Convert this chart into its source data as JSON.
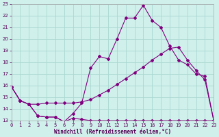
{
  "xlabel": "Windchill (Refroidissement éolien,°C)",
  "bg_color": "#cff0eb",
  "line_color": "#800080",
  "grid_color": "#aad8d0",
  "xlim": [
    0,
    23
  ],
  "ylim": [
    13,
    23
  ],
  "xticks": [
    0,
    1,
    2,
    3,
    4,
    5,
    6,
    7,
    8,
    9,
    10,
    11,
    12,
    13,
    14,
    15,
    16,
    17,
    18,
    19,
    20,
    21,
    22,
    23
  ],
  "yticks": [
    13,
    14,
    15,
    16,
    17,
    18,
    19,
    20,
    21,
    22,
    23
  ],
  "curve_wavy_x": [
    0,
    1,
    2,
    3,
    4,
    5,
    6,
    7,
    8,
    9,
    10,
    11,
    12,
    13,
    14,
    15,
    16,
    17,
    18,
    19,
    20,
    21,
    22,
    23
  ],
  "curve_wavy_y": [
    15.9,
    14.7,
    14.4,
    13.4,
    13.3,
    13.3,
    12.9,
    13.2,
    13.1,
    13.0,
    13.0,
    13.0,
    13.0,
    13.0,
    13.0,
    13.0,
    13.0,
    13.0,
    13.0,
    13.0,
    13.0,
    13.0,
    13.0,
    13.0
  ],
  "curve_mid_x": [
    0,
    1,
    2,
    3,
    4,
    5,
    6,
    7,
    8,
    9,
    10,
    11,
    12,
    13,
    14,
    15,
    16,
    17,
    18,
    19,
    20,
    21,
    22,
    23
  ],
  "curve_mid_y": [
    15.9,
    14.7,
    14.4,
    14.4,
    14.5,
    14.5,
    14.5,
    14.5,
    14.6,
    14.8,
    15.2,
    15.6,
    16.1,
    16.6,
    17.1,
    17.6,
    18.2,
    18.7,
    19.2,
    19.3,
    18.2,
    17.3,
    16.5,
    13.0
  ],
  "curve_top_x": [
    0,
    1,
    2,
    3,
    4,
    5,
    6,
    7,
    8,
    9,
    10,
    11,
    12,
    13,
    14,
    15,
    16,
    17,
    18,
    19,
    20,
    21,
    22,
    23
  ],
  "curve_top_y": [
    15.9,
    14.7,
    14.4,
    13.4,
    13.3,
    13.3,
    12.9,
    13.6,
    14.5,
    17.5,
    18.5,
    18.3,
    20.0,
    21.8,
    21.8,
    22.9,
    21.6,
    21.0,
    19.4,
    18.2,
    17.8,
    17.0,
    16.8,
    13.0
  ]
}
